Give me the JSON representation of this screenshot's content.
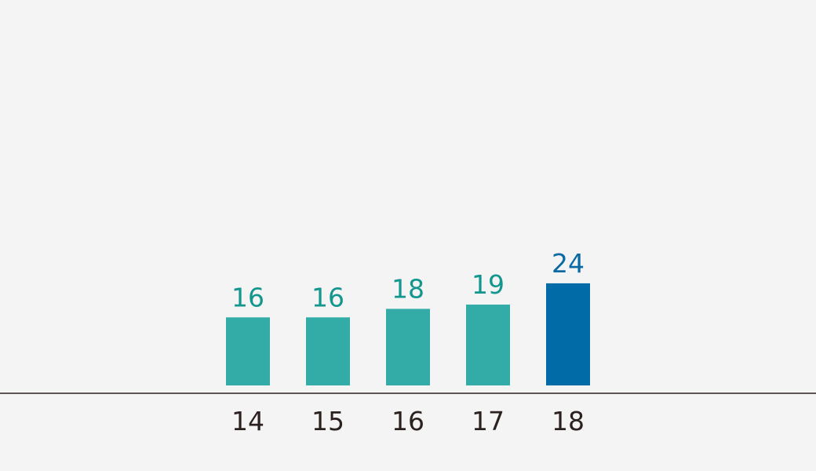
{
  "chart_data": {
    "type": "bar",
    "categories": [
      "14",
      "15",
      "16",
      "17",
      "18"
    ],
    "values": [
      16,
      16,
      18,
      19,
      24
    ],
    "colors": [
      "#33aca8",
      "#33aca8",
      "#33aca8",
      "#33aca8",
      "#006ba6"
    ],
    "label_colors": [
      "#12968e",
      "#12968e",
      "#12968e",
      "#12968e",
      "#0b69a3"
    ]
  }
}
